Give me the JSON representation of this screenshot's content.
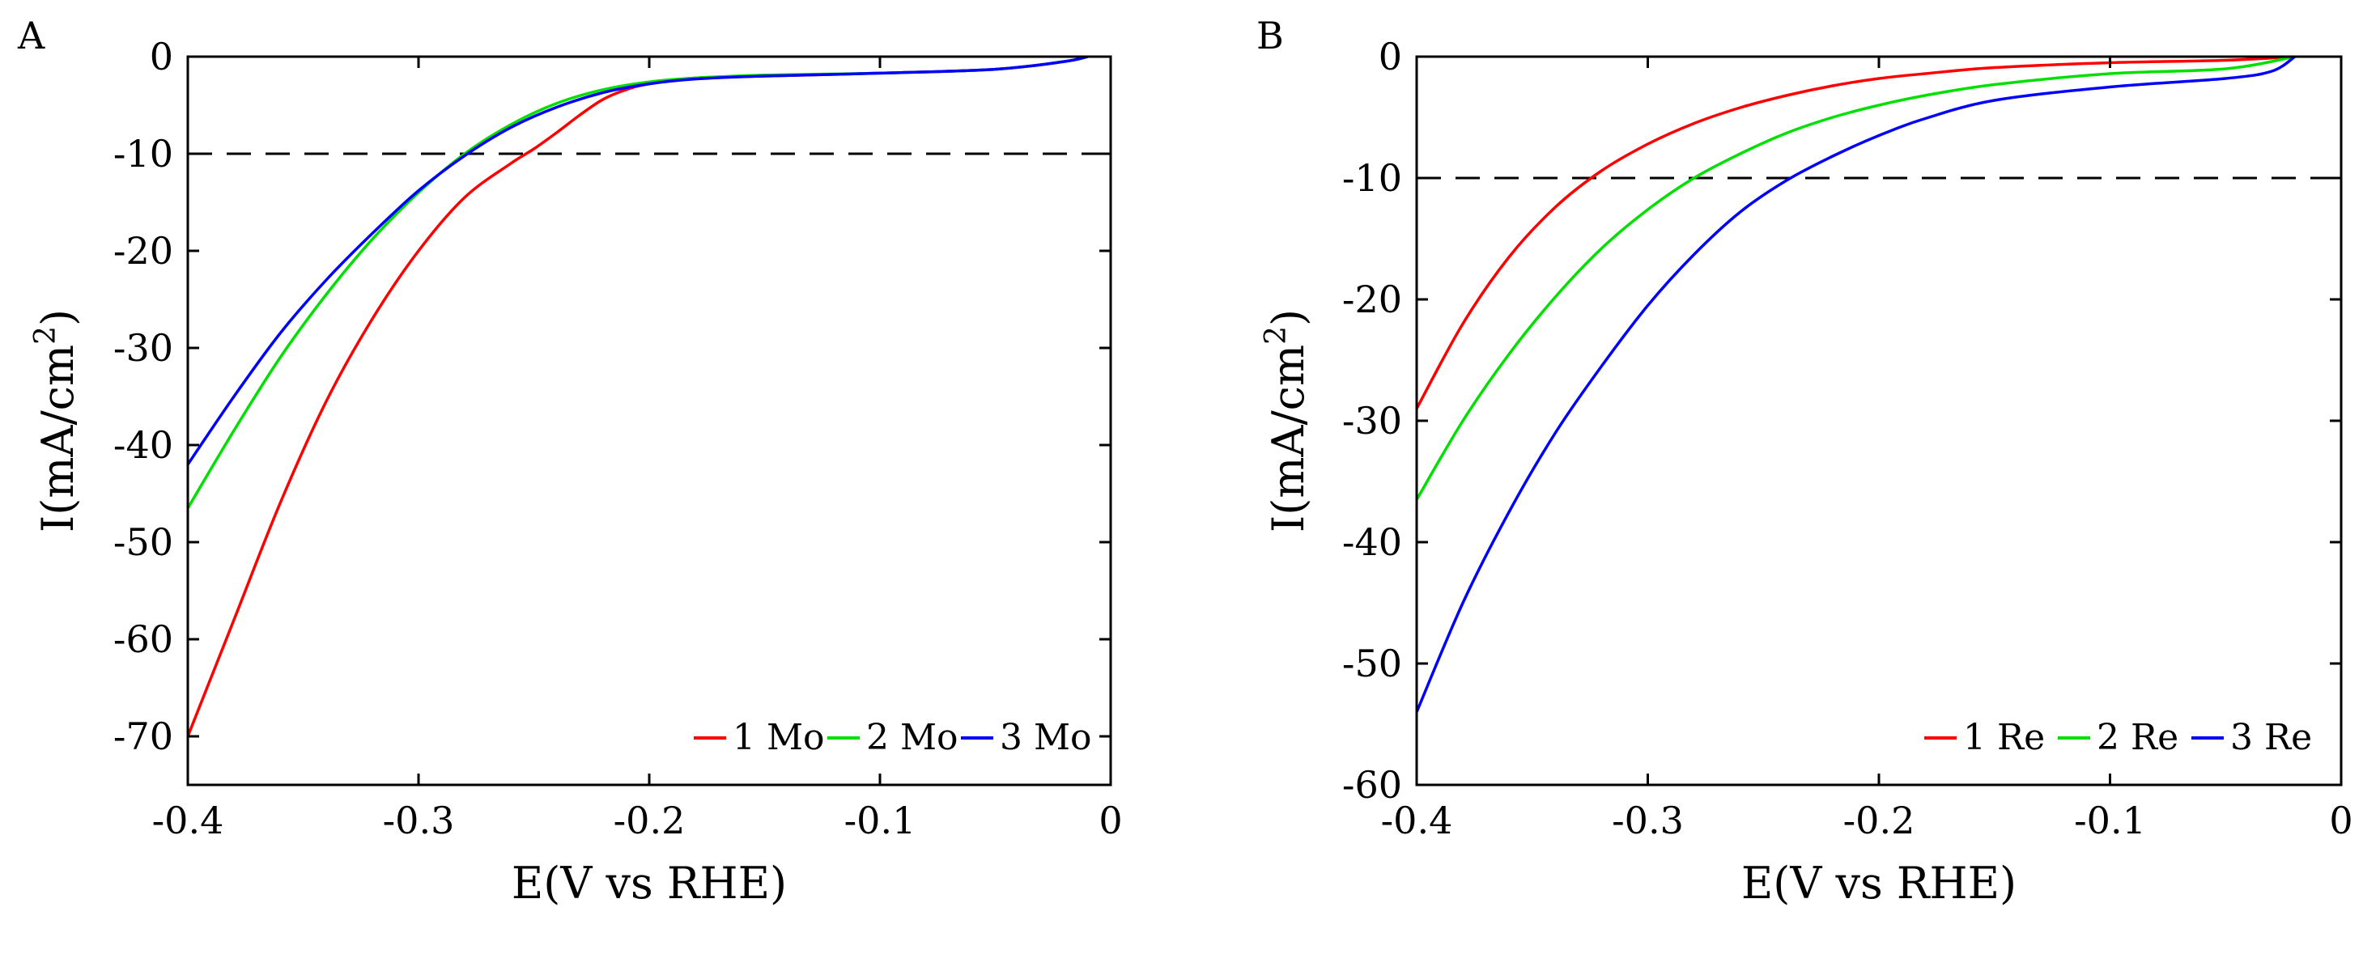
{
  "chart_data": [
    {
      "panel_label": "A",
      "type": "line",
      "xlabel": "E(V vs RHE)",
      "ylabel_main": "I(mA/cm",
      "ylabel_sup": "2",
      "ylabel_close": ")",
      "xlim": [
        -0.4,
        0
      ],
      "ylim": [
        -75,
        0
      ],
      "xticks": [
        -0.4,
        -0.3,
        -0.2,
        -0.1,
        0
      ],
      "xtick_labels": [
        "-0.4",
        "-0.3",
        "-0.2",
        "-0.1",
        "0"
      ],
      "yticks": [
        0,
        -10,
        -20,
        -30,
        -40,
        -50,
        -60,
        -70
      ],
      "ytick_labels": [
        "0",
        "-10",
        "-20",
        "-30",
        "-40",
        "-50",
        "-60",
        "-70"
      ],
      "reference_line": {
        "y": -10,
        "style": "dashed"
      },
      "legend_position": "bottom-right",
      "series": [
        {
          "name": "1 Mo",
          "color": "#ff0000",
          "x": [
            -0.4,
            -0.38,
            -0.36,
            -0.34,
            -0.32,
            -0.3,
            -0.28,
            -0.26,
            -0.25,
            -0.24,
            -0.23,
            -0.22,
            -0.21,
            -0.2,
            -0.18,
            -0.15,
            -0.1,
            -0.05,
            -0.02,
            -0.01
          ],
          "y": [
            -70,
            -58,
            -46,
            -35.5,
            -27,
            -20,
            -14.5,
            -11,
            -9.5,
            -7.8,
            -6,
            -4.4,
            -3.4,
            -2.8,
            -2.2,
            -2.0,
            -1.7,
            -1.3,
            -0.5,
            0
          ]
        },
        {
          "name": "2 Mo",
          "color": "#00e000",
          "x": [
            -0.4,
            -0.38,
            -0.36,
            -0.34,
            -0.32,
            -0.3,
            -0.28,
            -0.26,
            -0.24,
            -0.22,
            -0.2,
            -0.18,
            -0.15,
            -0.1,
            -0.05,
            -0.02,
            -0.01
          ],
          "y": [
            -46.5,
            -38.5,
            -31,
            -24.5,
            -18.8,
            -14,
            -10,
            -7,
            -4.8,
            -3.4,
            -2.6,
            -2.2,
            -1.9,
            -1.7,
            -1.3,
            -0.5,
            0
          ]
        },
        {
          "name": "3 Mo",
          "color": "#0000ff",
          "x": [
            -0.4,
            -0.38,
            -0.36,
            -0.34,
            -0.32,
            -0.3,
            -0.28,
            -0.26,
            -0.24,
            -0.22,
            -0.2,
            -0.18,
            -0.15,
            -0.1,
            -0.05,
            -0.02,
            -0.01
          ],
          "y": [
            -42,
            -35,
            -28.5,
            -23,
            -18.2,
            -13.8,
            -10.2,
            -7.3,
            -5.2,
            -3.7,
            -2.8,
            -2.3,
            -2.0,
            -1.7,
            -1.3,
            -0.5,
            0
          ]
        }
      ],
      "legend_entries": [
        "1 Mo",
        "2 Mo",
        "3 Mo"
      ]
    },
    {
      "panel_label": "B",
      "type": "line",
      "xlabel": "E(V vs RHE)",
      "ylabel_main": "I(mA/cm",
      "ylabel_sup": "2",
      "ylabel_close": ")",
      "xlim": [
        -0.4,
        0
      ],
      "ylim": [
        -60,
        0
      ],
      "xticks": [
        -0.4,
        -0.3,
        -0.2,
        -0.1,
        0
      ],
      "xtick_labels": [
        "-0.4",
        "-0.3",
        "-0.2",
        "-0.1",
        "0"
      ],
      "yticks": [
        0,
        -10,
        -20,
        -30,
        -40,
        -50,
        -60
      ],
      "ytick_labels": [
        "0",
        "-10",
        "-20",
        "-30",
        "-40",
        "-50",
        "-60"
      ],
      "reference_line": {
        "y": -10,
        "style": "dashed"
      },
      "legend_position": "bottom-right",
      "series": [
        {
          "name": "1 Re",
          "color": "#ff0000",
          "x": [
            -0.4,
            -0.38,
            -0.36,
            -0.34,
            -0.32,
            -0.3,
            -0.28,
            -0.26,
            -0.24,
            -0.22,
            -0.2,
            -0.18,
            -0.15,
            -0.1,
            -0.05,
            -0.02
          ],
          "y": [
            -29,
            -22,
            -16.5,
            -12.4,
            -9.4,
            -7.2,
            -5.5,
            -4.2,
            -3.2,
            -2.4,
            -1.8,
            -1.4,
            -0.9,
            -0.5,
            -0.3,
            0
          ]
        },
        {
          "name": "2 Re",
          "color": "#00e000",
          "x": [
            -0.4,
            -0.38,
            -0.36,
            -0.34,
            -0.32,
            -0.3,
            -0.28,
            -0.26,
            -0.24,
            -0.22,
            -0.2,
            -0.18,
            -0.15,
            -0.1,
            -0.05,
            -0.02
          ],
          "y": [
            -36.5,
            -30,
            -24.5,
            -19.8,
            -15.8,
            -12.6,
            -10,
            -8,
            -6.3,
            -5,
            -4,
            -3.2,
            -2.3,
            -1.4,
            -1,
            0
          ]
        },
        {
          "name": "3 Re",
          "color": "#0000ff",
          "x": [
            -0.4,
            -0.38,
            -0.36,
            -0.34,
            -0.32,
            -0.3,
            -0.28,
            -0.26,
            -0.24,
            -0.22,
            -0.2,
            -0.18,
            -0.15,
            -0.1,
            -0.05,
            -0.03,
            -0.02
          ],
          "y": [
            -54,
            -45,
            -37.5,
            -31,
            -25.5,
            -20.5,
            -16.3,
            -12.8,
            -10.2,
            -8.2,
            -6.5,
            -5.1,
            -3.6,
            -2.5,
            -1.8,
            -1.2,
            0
          ]
        }
      ],
      "legend_entries": [
        "1 Re",
        "2 Re",
        "3 Re"
      ]
    }
  ]
}
